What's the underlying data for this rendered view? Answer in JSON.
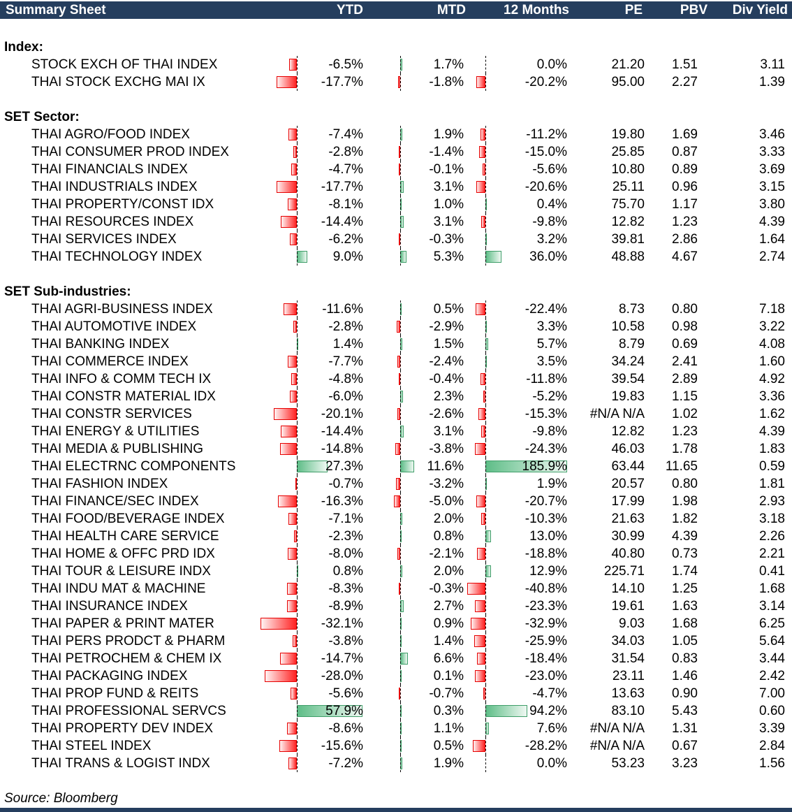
{
  "title": "Summary Sheet",
  "columns": {
    "ytd": "YTD",
    "mtd": "MTD",
    "m12": "12 Months",
    "pe": "PE",
    "pbv": "PBV",
    "div": "Div Yield"
  },
  "source": "Source: Bloomberg",
  "colors": {
    "header_bg": "#253E5E",
    "header_text": "#FFFFFF",
    "axis": "#000000",
    "negative_bar": {
      "border": "#E60000",
      "tip": "#FFF2F2",
      "base": "#FF2222"
    },
    "positive_bar": {
      "border": "#3F9E69",
      "base": "#5EBD87",
      "tip": "#EFF8F2"
    }
  },
  "sections": [
    {
      "label": "Index:",
      "rows": [
        {
          "name": "STOCK EXCH OF THAI INDEX",
          "ytd": "-6.5%",
          "mtd": "1.7%",
          "m12": "0.0%",
          "pe": "21.20",
          "pbv": "1.51",
          "div": "3.11"
        },
        {
          "name": "THAI STOCK EXCHG MAI IX",
          "ytd": "-17.7%",
          "mtd": "-1.8%",
          "m12": "-20.2%",
          "pe": "95.00",
          "pbv": "2.27",
          "div": "1.39"
        }
      ]
    },
    {
      "label": "SET Sector:",
      "rows": [
        {
          "name": "THAI AGRO/FOOD INDEX",
          "ytd": "-7.4%",
          "mtd": "1.9%",
          "m12": "-11.2%",
          "pe": "19.80",
          "pbv": "1.69",
          "div": "3.46"
        },
        {
          "name": "THAI CONSUMER PROD INDEX",
          "ytd": "-2.8%",
          "mtd": "-1.4%",
          "m12": "-15.0%",
          "pe": "25.85",
          "pbv": "0.87",
          "div": "3.33"
        },
        {
          "name": "THAI FINANCIALS INDEX",
          "ytd": "-4.7%",
          "mtd": "-0.1%",
          "m12": "-5.6%",
          "pe": "10.80",
          "pbv": "0.89",
          "div": "3.69"
        },
        {
          "name": "THAI INDUSTRIALS INDEX",
          "ytd": "-17.7%",
          "mtd": "3.1%",
          "m12": "-20.6%",
          "pe": "25.11",
          "pbv": "0.96",
          "div": "3.15"
        },
        {
          "name": "THAI PROPERTY/CONST IDX",
          "ytd": "-8.1%",
          "mtd": "1.0%",
          "m12": "0.4%",
          "pe": "75.70",
          "pbv": "1.17",
          "div": "3.80"
        },
        {
          "name": "THAI RESOURCES INDEX",
          "ytd": "-14.4%",
          "mtd": "3.1%",
          "m12": "-9.8%",
          "pe": "12.82",
          "pbv": "1.23",
          "div": "4.39"
        },
        {
          "name": "THAI SERVICES INDEX",
          "ytd": "-6.2%",
          "mtd": "-0.3%",
          "m12": "3.2%",
          "pe": "39.81",
          "pbv": "2.86",
          "div": "1.64"
        },
        {
          "name": "THAI TECHNOLOGY INDEX",
          "ytd": "9.0%",
          "mtd": "5.3%",
          "m12": "36.0%",
          "pe": "48.88",
          "pbv": "4.67",
          "div": "2.74"
        }
      ]
    },
    {
      "label": "SET Sub-industries:",
      "rows": [
        {
          "name": "THAI AGRI-BUSINESS INDEX",
          "ytd": "-11.6%",
          "mtd": "0.5%",
          "m12": "-22.4%",
          "pe": "8.73",
          "pbv": "0.80",
          "div": "7.18"
        },
        {
          "name": "THAI AUTOMOTIVE INDEX",
          "ytd": "-2.8%",
          "mtd": "-2.9%",
          "m12": "3.3%",
          "pe": "10.58",
          "pbv": "0.98",
          "div": "3.22"
        },
        {
          "name": "THAI BANKING INDEX",
          "ytd": "1.4%",
          "mtd": "1.5%",
          "m12": "5.7%",
          "pe": "8.79",
          "pbv": "0.69",
          "div": "4.08"
        },
        {
          "name": "THAI COMMERCE INDEX",
          "ytd": "-7.7%",
          "mtd": "-2.4%",
          "m12": "3.5%",
          "pe": "34.24",
          "pbv": "2.41",
          "div": "1.60"
        },
        {
          "name": "THAI INFO & COMM TECH IX",
          "ytd": "-4.8%",
          "mtd": "-0.4%",
          "m12": "-11.8%",
          "pe": "39.54",
          "pbv": "2.89",
          "div": "4.92"
        },
        {
          "name": "THAI CONSTR MATERIAL IDX",
          "ytd": "-6.0%",
          "mtd": "2.3%",
          "m12": "-5.2%",
          "pe": "19.83",
          "pbv": "1.15",
          "div": "3.36"
        },
        {
          "name": "THAI CONSTR SERVICES",
          "ytd": "-20.1%",
          "mtd": "-2.6%",
          "m12": "-15.3%",
          "pe": "#N/A N/A",
          "pbv": "1.02",
          "div": "1.62"
        },
        {
          "name": "THAI ENERGY & UTILITIES",
          "ytd": "-14.4%",
          "mtd": "3.1%",
          "m12": "-9.8%",
          "pe": "12.82",
          "pbv": "1.23",
          "div": "4.39"
        },
        {
          "name": "THAI MEDIA & PUBLISHING",
          "ytd": "-14.8%",
          "mtd": "-3.8%",
          "m12": "-24.3%",
          "pe": "46.03",
          "pbv": "1.78",
          "div": "1.83"
        },
        {
          "name": "THAI ELECTRNC COMPONENTS",
          "ytd": "27.3%",
          "mtd": "11.6%",
          "m12": "185.9%",
          "pe": "63.44",
          "pbv": "11.65",
          "div": "0.59"
        },
        {
          "name": "THAI FASHION INDEX",
          "ytd": "-0.7%",
          "mtd": "-3.2%",
          "m12": "1.9%",
          "pe": "20.57",
          "pbv": "0.80",
          "div": "1.81"
        },
        {
          "name": "THAI FINANCE/SEC INDEX",
          "ytd": "-16.3%",
          "mtd": "-5.0%",
          "m12": "-20.7%",
          "pe": "17.99",
          "pbv": "1.98",
          "div": "2.93"
        },
        {
          "name": "THAI FOOD/BEVERAGE INDEX",
          "ytd": "-7.1%",
          "mtd": "2.0%",
          "m12": "-10.3%",
          "pe": "21.63",
          "pbv": "1.82",
          "div": "3.18"
        },
        {
          "name": "THAI HEALTH CARE SERVICE",
          "ytd": "-2.3%",
          "mtd": "0.8%",
          "m12": "13.0%",
          "pe": "30.99",
          "pbv": "4.39",
          "div": "2.26"
        },
        {
          "name": "THAI HOME & OFFC PRD IDX",
          "ytd": "-8.0%",
          "mtd": "-2.1%",
          "m12": "-18.8%",
          "pe": "40.80",
          "pbv": "0.73",
          "div": "2.21"
        },
        {
          "name": "THAI TOUR & LEISURE INDX",
          "ytd": "0.8%",
          "mtd": "2.0%",
          "m12": "12.9%",
          "pe": "225.71",
          "pbv": "1.74",
          "div": "0.41"
        },
        {
          "name": "THAI INDU MAT & MACHINE",
          "ytd": "-8.3%",
          "mtd": "-0.3%",
          "m12": "-40.8%",
          "pe": "14.10",
          "pbv": "1.25",
          "div": "1.68"
        },
        {
          "name": "THAI INSURANCE INDEX",
          "ytd": "-8.9%",
          "mtd": "2.7%",
          "m12": "-23.3%",
          "pe": "19.61",
          "pbv": "1.63",
          "div": "3.14"
        },
        {
          "name": "THAI PAPER & PRINT MATER",
          "ytd": "-32.1%",
          "mtd": "0.9%",
          "m12": "-32.9%",
          "pe": "9.03",
          "pbv": "1.68",
          "div": "6.25"
        },
        {
          "name": "THAI PERS PRODCT & PHARM",
          "ytd": "-3.8%",
          "mtd": "1.4%",
          "m12": "-25.9%",
          "pe": "34.03",
          "pbv": "1.05",
          "div": "5.64"
        },
        {
          "name": "THAI PETROCHEM & CHEM IX",
          "ytd": "-14.7%",
          "mtd": "6.6%",
          "m12": "-18.4%",
          "pe": "31.54",
          "pbv": "0.83",
          "div": "3.44"
        },
        {
          "name": "THAI PACKAGING INDEX",
          "ytd": "-28.0%",
          "mtd": "0.1%",
          "m12": "-23.0%",
          "pe": "23.11",
          "pbv": "1.46",
          "div": "2.42"
        },
        {
          "name": "THAI PROP FUND & REITS",
          "ytd": "-5.6%",
          "mtd": "-0.7%",
          "m12": "-4.7%",
          "pe": "13.63",
          "pbv": "0.90",
          "div": "7.00"
        },
        {
          "name": "THAI PROFESSIONAL SERVCS",
          "ytd": "57.9%",
          "mtd": "0.3%",
          "m12": "94.2%",
          "pe": "83.10",
          "pbv": "5.43",
          "div": "0.60"
        },
        {
          "name": "THAI PROPERTY DEV INDEX",
          "ytd": "-8.6%",
          "mtd": "1.1%",
          "m12": "7.6%",
          "pe": "#N/A N/A",
          "pbv": "1.31",
          "div": "3.39"
        },
        {
          "name": "THAI STEEL INDEX",
          "ytd": "-15.6%",
          "mtd": "0.5%",
          "m12": "-28.2%",
          "pe": "#N/A N/A",
          "pbv": "0.67",
          "div": "2.84"
        },
        {
          "name": "THAI TRANS & LOGIST INDX",
          "ytd": "-7.2%",
          "mtd": "1.9%",
          "m12": "0.0%",
          "pe": "53.23",
          "pbv": "3.23",
          "div": "1.56"
        }
      ]
    }
  ]
}
